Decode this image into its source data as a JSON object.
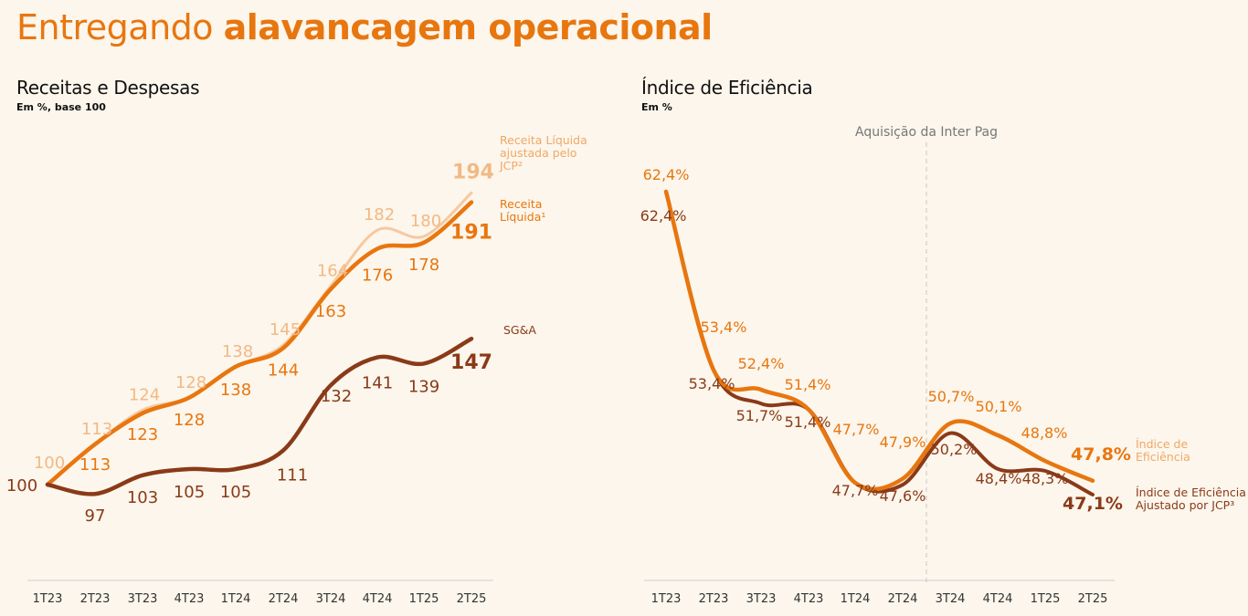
{
  "title": {
    "regular": "Entregando ",
    "bold": "alavancagem operacional"
  },
  "colors": {
    "background": "#fcf6ec",
    "orange": "#e8760f",
    "light_orange": "#f7c8a0",
    "light_orange_text": "#f2b985",
    "brown": "#8a3a18",
    "axis": "#cfcfcf"
  },
  "chart_data": [
    {
      "type": "line",
      "title": "Receitas e Despesas",
      "subtitle": "Em %, base 100",
      "categories": [
        "1T23",
        "2T23",
        "3T23",
        "4T23",
        "1T24",
        "2T24",
        "3T24",
        "4T24",
        "1T25",
        "2T25"
      ],
      "series": [
        {
          "name": "Receita Líquida ajustada pelo JCP²",
          "name_lines": [
            "Receita Líquida",
            "ajustada pelo",
            "JCP²"
          ],
          "values": [
            100,
            113,
            124,
            128,
            138,
            145,
            164,
            182,
            180,
            194
          ],
          "labels": [
            "100",
            "113",
            "124",
            "128",
            "138",
            "145",
            "164",
            "182",
            "180",
            "194"
          ]
        },
        {
          "name": "Receita Líquida¹",
          "name_lines": [
            "Receita",
            "Líquida¹"
          ],
          "values": [
            100,
            113,
            123,
            128,
            138,
            144,
            163,
            176,
            178,
            191
          ],
          "labels": [
            "100",
            "113",
            "123",
            "128",
            "138",
            "144",
            "163",
            "176",
            "178",
            "191"
          ]
        },
        {
          "name": "SG&A",
          "name_lines": [
            "SG&A"
          ],
          "values": [
            100,
            97,
            103,
            105,
            105,
            111,
            132,
            141,
            139,
            147
          ],
          "labels": [
            "100",
            "97",
            "103",
            "105",
            "105",
            "111",
            "132",
            "141",
            "139",
            "147"
          ]
        }
      ]
    },
    {
      "type": "line",
      "title": "Índice de Eficiência",
      "subtitle": "Em %",
      "annotation": "Aquisição da Inter Pag",
      "categories": [
        "1T23",
        "2T23",
        "3T23",
        "4T23",
        "1T24",
        "2T24",
        "3T24",
        "4T24",
        "1T25",
        "2T25"
      ],
      "series": [
        {
          "name": "Índice de Eficiência",
          "name_lines": [
            "Índice de",
            "Eficiência"
          ],
          "values": [
            62.4,
            53.4,
            52.4,
            51.4,
            47.7,
            47.9,
            50.7,
            50.1,
            48.8,
            47.8
          ],
          "labels": [
            "62,4%",
            "53,4%",
            "52,4%",
            "51,4%",
            "47,7%",
            "47,9%",
            "50,7%",
            "50,1%",
            "48,8%",
            "47,8%"
          ]
        },
        {
          "name": "Índice de Eficiência Ajustado por JCP³",
          "name_lines": [
            "Índice de Eficiência",
            "Ajustado por JCP³"
          ],
          "values": [
            62.4,
            53.4,
            51.7,
            51.4,
            47.7,
            47.6,
            50.2,
            48.4,
            48.3,
            47.1
          ],
          "labels": [
            "62,4%",
            "53,4%",
            "51,7%",
            "51,4%",
            "47,7%",
            "47,6%",
            "50,2%",
            "48,4%",
            "48,3%",
            "47,1%"
          ]
        }
      ]
    }
  ]
}
